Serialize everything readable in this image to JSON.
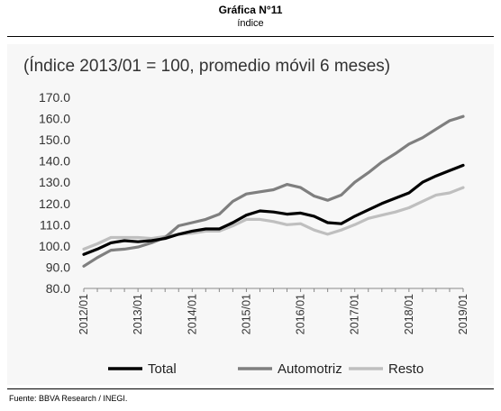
{
  "header": {
    "title": "Gráfica N°11",
    "subtitle": "índice"
  },
  "footer": {
    "source": "Fuente: BBVA Research / INEGI."
  },
  "chart_data": {
    "type": "line",
    "title": "",
    "subtitle": "(Índice 2013/01 = 100, promedio móvil 6 meses)",
    "xlabel": "",
    "ylabel": "",
    "ylim": [
      80.0,
      170.0
    ],
    "yticks": [
      "80.0",
      "90.0",
      "100.0",
      "110.0",
      "120.0",
      "130.0",
      "140.0",
      "150.0",
      "160.0",
      "170.0"
    ],
    "xticks": [
      "2012/01",
      "2013/01",
      "2014/01",
      "2015/01",
      "2016/01",
      "2017/01",
      "2018/01",
      "2019/01"
    ],
    "x_start": "2012/01",
    "x_end": "2019/01",
    "grid": false,
    "legend_position": "bottom",
    "series": [
      {
        "name": "Total",
        "color": "#000000",
        "points": [
          [
            "2012/01",
            96.0
          ],
          [
            "2012/04",
            98.5
          ],
          [
            "2012/07",
            101.5
          ],
          [
            "2012/10",
            102.5
          ],
          [
            "2013/01",
            102.0
          ],
          [
            "2013/04",
            102.5
          ],
          [
            "2013/07",
            103.5
          ],
          [
            "2013/10",
            105.5
          ],
          [
            "2014/01",
            107.0
          ],
          [
            "2014/04",
            108.0
          ],
          [
            "2014/07",
            108.0
          ],
          [
            "2014/10",
            111.0
          ],
          [
            "2015/01",
            114.5
          ],
          [
            "2015/04",
            116.5
          ],
          [
            "2015/07",
            116.0
          ],
          [
            "2015/10",
            115.0
          ],
          [
            "2016/01",
            115.5
          ],
          [
            "2016/04",
            114.0
          ],
          [
            "2016/07",
            111.0
          ],
          [
            "2016/10",
            110.5
          ],
          [
            "2017/01",
            114.0
          ],
          [
            "2017/04",
            117.0
          ],
          [
            "2017/07",
            120.0
          ],
          [
            "2017/10",
            122.5
          ],
          [
            "2018/01",
            125.0
          ],
          [
            "2018/04",
            130.0
          ],
          [
            "2018/07",
            133.0
          ],
          [
            "2018/10",
            135.5
          ],
          [
            "2019/01",
            138.0
          ]
        ]
      },
      {
        "name": "Automotriz",
        "color": "#7f7f7f",
        "points": [
          [
            "2012/01",
            90.5
          ],
          [
            "2012/04",
            94.5
          ],
          [
            "2012/07",
            98.0
          ],
          [
            "2012/10",
            98.5
          ],
          [
            "2013/01",
            99.5
          ],
          [
            "2013/04",
            101.5
          ],
          [
            "2013/07",
            104.0
          ],
          [
            "2013/10",
            109.5
          ],
          [
            "2014/01",
            111.0
          ],
          [
            "2014/04",
            112.5
          ],
          [
            "2014/07",
            115.0
          ],
          [
            "2014/10",
            121.0
          ],
          [
            "2015/01",
            124.5
          ],
          [
            "2015/04",
            125.5
          ],
          [
            "2015/07",
            126.5
          ],
          [
            "2015/10",
            129.0
          ],
          [
            "2016/01",
            127.5
          ],
          [
            "2016/04",
            123.5
          ],
          [
            "2016/07",
            121.5
          ],
          [
            "2016/10",
            124.0
          ],
          [
            "2017/01",
            130.0
          ],
          [
            "2017/04",
            134.5
          ],
          [
            "2017/07",
            139.5
          ],
          [
            "2017/10",
            143.5
          ],
          [
            "2018/01",
            148.0
          ],
          [
            "2018/04",
            151.0
          ],
          [
            "2018/07",
            155.0
          ],
          [
            "2018/10",
            159.0
          ],
          [
            "2019/01",
            161.0
          ]
        ]
      },
      {
        "name": "Resto",
        "color": "#bfbfbf",
        "points": [
          [
            "2012/01",
            98.5
          ],
          [
            "2012/04",
            101.0
          ],
          [
            "2012/07",
            104.0
          ],
          [
            "2012/10",
            104.0
          ],
          [
            "2013/01",
            104.0
          ],
          [
            "2013/04",
            103.5
          ],
          [
            "2013/07",
            104.5
          ],
          [
            "2013/10",
            105.5
          ],
          [
            "2014/01",
            106.0
          ],
          [
            "2014/04",
            107.0
          ],
          [
            "2014/07",
            107.0
          ],
          [
            "2014/10",
            109.5
          ],
          [
            "2015/01",
            112.5
          ],
          [
            "2015/04",
            112.5
          ],
          [
            "2015/07",
            111.5
          ],
          [
            "2015/10",
            110.0
          ],
          [
            "2016/01",
            110.5
          ],
          [
            "2016/04",
            107.5
          ],
          [
            "2016/07",
            105.5
          ],
          [
            "2016/10",
            107.5
          ],
          [
            "2017/01",
            110.0
          ],
          [
            "2017/04",
            113.0
          ],
          [
            "2017/07",
            114.5
          ],
          [
            "2017/10",
            116.0
          ],
          [
            "2018/01",
            118.0
          ],
          [
            "2018/04",
            121.0
          ],
          [
            "2018/07",
            124.0
          ],
          [
            "2018/10",
            125.0
          ],
          [
            "2019/01",
            127.5
          ]
        ]
      }
    ]
  }
}
